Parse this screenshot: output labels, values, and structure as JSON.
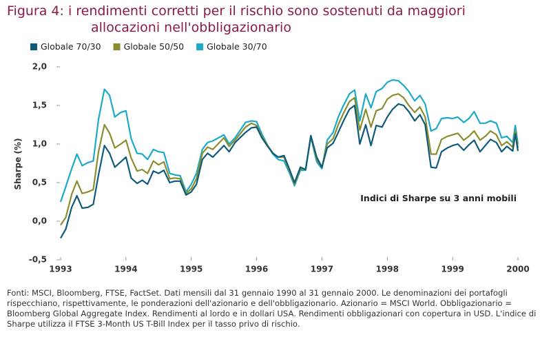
{
  "chart_data": {
    "type": "line",
    "title": [
      "Figura 4: i rendimenti corretti per il rischio sono sostenuti da maggiori",
      "allocazioni nell'obbligazionario"
    ],
    "ylabel": "Sharpe (%)",
    "annotation": "Indici di Sharpe su 3 anni mobili",
    "source": "Fonti: MSCI, Bloomberg, FTSE, FactSet. Dati mensili dal 31 gennaio 1990 al 31 gennaio 2000. Le denominazioni dei portafogli rispecchiano, rispettivamente, le ponderazioni dell'azionario e dell'obbligazionario. Azionario = MSCI World. Obbligazionario = Bloomberg Global Aggregate Index. Rendimenti al lordo e in dollari USA. Rendimenti obbligazionari con copertura in USD. L'indice di Sharpe utilizza il FTSE 3-Month US T-Bill Index per il tasso privo di rischio.",
    "x": [
      1993.0,
      1993.08,
      1993.17,
      1993.25,
      1993.33,
      1993.42,
      1993.5,
      1993.58,
      1993.67,
      1993.75,
      1993.83,
      1993.92,
      1994.0,
      1994.08,
      1994.17,
      1994.25,
      1994.33,
      1994.42,
      1994.5,
      1994.58,
      1994.67,
      1994.75,
      1994.83,
      1994.92,
      1995.0,
      1995.08,
      1995.17,
      1995.25,
      1995.33,
      1995.5,
      1995.58,
      1995.67,
      1995.83,
      1995.92,
      1996.0,
      1996.08,
      1996.17,
      1996.25,
      1996.33,
      1996.42,
      1996.5,
      1996.58,
      1996.67,
      1996.75,
      1996.83,
      1996.92,
      1997.0,
      1997.08,
      1997.17,
      1997.25,
      1997.33,
      1997.42,
      1997.5,
      1997.58,
      1997.67,
      1997.75,
      1997.83,
      1997.92,
      1998.0,
      1998.08,
      1998.17,
      1998.25,
      1998.33,
      1998.42,
      1998.5,
      1998.58,
      1998.67,
      1998.75,
      1998.83,
      1998.92,
      1999.0,
      1999.08,
      1999.17,
      1999.25,
      1999.33,
      1999.42,
      1999.5,
      1999.58,
      1999.67,
      1999.75,
      1999.83,
      1999.92,
      1999.96,
      2000.0
    ],
    "series": [
      {
        "name": "Globale 70/30",
        "color": "#0d5a7a",
        "values": [
          -0.22,
          -0.1,
          0.18,
          0.33,
          0.17,
          0.18,
          0.22,
          0.6,
          0.98,
          0.88,
          0.7,
          0.77,
          0.83,
          0.56,
          0.49,
          0.53,
          0.48,
          0.65,
          0.62,
          0.66,
          0.5,
          0.52,
          0.52,
          0.34,
          0.38,
          0.48,
          0.8,
          0.88,
          0.83,
          0.98,
          0.9,
          1.02,
          1.15,
          1.21,
          1.22,
          1.08,
          0.97,
          0.88,
          0.83,
          0.85,
          0.68,
          0.5,
          0.7,
          0.67,
          1.11,
          0.83,
          0.7,
          0.95,
          1.01,
          1.15,
          1.3,
          1.45,
          1.5,
          1.0,
          1.25,
          0.98,
          1.24,
          1.22,
          1.35,
          1.45,
          1.52,
          1.5,
          1.42,
          1.3,
          1.38,
          1.25,
          0.7,
          0.69,
          0.9,
          0.95,
          0.98,
          1.0,
          0.92,
          0.99,
          1.05,
          0.9,
          0.98,
          1.06,
          1.02,
          0.9,
          0.97,
          0.91,
          1.13,
          0.91
        ]
      },
      {
        "name": "Globale 50/50",
        "color": "#8a8d2e",
        "values": [
          -0.05,
          0.05,
          0.35,
          0.52,
          0.36,
          0.38,
          0.41,
          0.9,
          1.25,
          1.14,
          0.95,
          1.0,
          1.05,
          0.82,
          0.65,
          0.67,
          0.62,
          0.78,
          0.73,
          0.77,
          0.55,
          0.56,
          0.55,
          0.36,
          0.42,
          0.55,
          0.88,
          0.96,
          0.93,
          1.08,
          0.97,
          1.05,
          1.22,
          1.27,
          1.24,
          1.1,
          0.98,
          0.88,
          0.83,
          0.83,
          0.66,
          0.48,
          0.68,
          0.67,
          1.1,
          0.8,
          0.7,
          1.0,
          1.07,
          1.25,
          1.4,
          1.55,
          1.6,
          1.18,
          1.45,
          1.22,
          1.43,
          1.46,
          1.58,
          1.63,
          1.65,
          1.6,
          1.5,
          1.41,
          1.48,
          1.35,
          0.87,
          0.87,
          1.06,
          1.1,
          1.12,
          1.14,
          1.05,
          1.1,
          1.17,
          1.05,
          1.1,
          1.17,
          1.12,
          0.98,
          1.03,
          0.96,
          1.17,
          0.95
        ]
      },
      {
        "name": "Globale 30/70",
        "color": "#1aa9c8",
        "values": [
          0.25,
          0.45,
          0.68,
          0.87,
          0.72,
          0.76,
          0.78,
          1.32,
          1.71,
          1.63,
          1.35,
          1.41,
          1.43,
          1.07,
          0.88,
          0.87,
          0.8,
          0.93,
          0.9,
          0.89,
          0.62,
          0.6,
          0.59,
          0.38,
          0.48,
          0.62,
          0.93,
          1.02,
          1.04,
          1.12,
          1.0,
          1.08,
          1.28,
          1.3,
          1.29,
          1.13,
          0.98,
          0.87,
          0.8,
          0.78,
          0.63,
          0.46,
          0.66,
          0.66,
          1.09,
          0.77,
          0.68,
          1.05,
          1.15,
          1.35,
          1.5,
          1.65,
          1.7,
          1.3,
          1.65,
          1.47,
          1.68,
          1.72,
          1.8,
          1.83,
          1.82,
          1.76,
          1.68,
          1.56,
          1.63,
          1.52,
          1.17,
          1.2,
          1.33,
          1.34,
          1.33,
          1.35,
          1.28,
          1.33,
          1.42,
          1.27,
          1.27,
          1.3,
          1.27,
          1.08,
          1.1,
          1.02,
          1.24,
          1.0
        ]
      }
    ],
    "xlim": [
      1993,
      2000
    ],
    "xticks": [
      1993,
      1994,
      1995,
      1996,
      1997,
      1998,
      1999,
      2000
    ],
    "ylim": [
      -0.5,
      2.0
    ],
    "yticks": [
      {
        "value": -0.5,
        "label": "-0,5"
      },
      {
        "value": 0,
        "label": "0,0"
      },
      {
        "value": 0.5,
        "label": "0,5"
      },
      {
        "value": 1.0,
        "label": "1,0"
      },
      {
        "value": 1.5,
        "label": "1,5"
      },
      {
        "value": 2.0,
        "label": "2,0"
      }
    ],
    "grid": false,
    "legend": "top-left"
  }
}
